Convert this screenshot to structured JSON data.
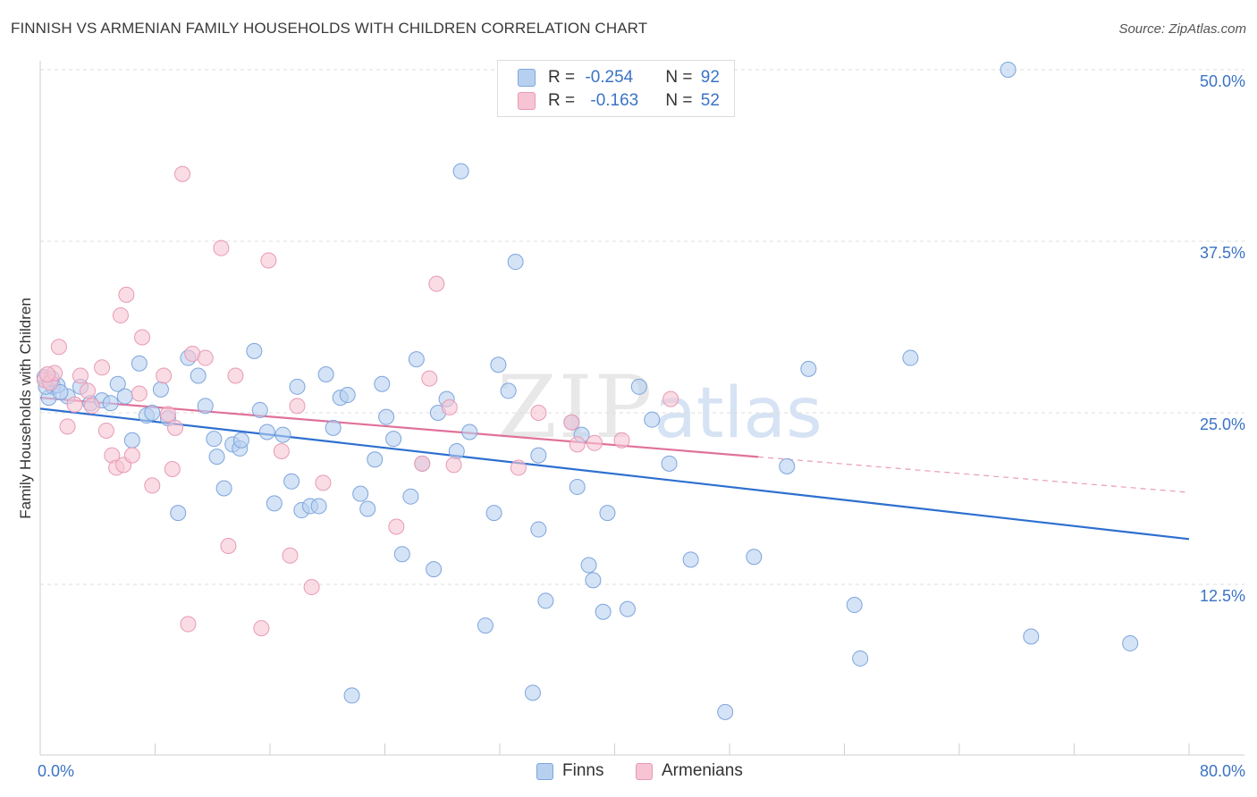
{
  "title": "FINNISH VS ARMENIAN FAMILY HOUSEHOLDS WITH CHILDREN CORRELATION CHART",
  "source": "Source: ZipAtlas.com",
  "watermark": {
    "part1": "ZIP",
    "part2": "atlas"
  },
  "colors": {
    "finns_fill": "#b8d0f0",
    "finns_stroke": "#7da5dd",
    "finns_line": "#2d6fd0",
    "armenians_fill": "#f6c4d3",
    "armenians_stroke": "#e89ab4",
    "armenians_line": "#e0719a",
    "axis_label": "#3a73c6",
    "grid": "#dddddd"
  },
  "stats": {
    "finns": {
      "r_label": "R = ",
      "r_value": "-0.254",
      "n_label": "N = ",
      "n_value": "92"
    },
    "armenians": {
      "r_label": "R = ",
      "r_value": "-0.163",
      "n_label": "N = ",
      "n_value": "52"
    }
  },
  "legend": {
    "finns": "Finns",
    "armenians": "Armenians"
  },
  "chart_data": {
    "type": "scatter",
    "title": "FINNISH VS ARMENIAN FAMILY HOUSEHOLDS WITH CHILDREN CORRELATION CHART",
    "xlabel": "",
    "ylabel": "Family Households with Children",
    "xlim": [
      0,
      80
    ],
    "ylim": [
      0,
      52
    ],
    "x_tick_labels": {
      "left": "0.0%",
      "right": "80.0%"
    },
    "y_ticks": [
      {
        "value": 12.5,
        "label": "12.5%"
      },
      {
        "value": 25.0,
        "label": "25.0%"
      },
      {
        "value": 37.5,
        "label": "37.5%"
      },
      {
        "value": 50.0,
        "label": "50.0%"
      }
    ],
    "series": [
      {
        "name": "Finns",
        "trend": {
          "x0": 0,
          "y0": 25.3,
          "x1": 80,
          "y1": 15.8,
          "dashed_from": null
        },
        "points": [
          [
            0.3,
            27.6
          ],
          [
            0.6,
            26.1
          ],
          [
            0.9,
            26.9
          ],
          [
            1.2,
            27.0
          ],
          [
            1.9,
            26.2
          ],
          [
            2.8,
            26.9
          ],
          [
            3.5,
            25.7
          ],
          [
            4.3,
            25.9
          ],
          [
            4.9,
            25.7
          ],
          [
            5.4,
            27.1
          ],
          [
            5.9,
            26.2
          ],
          [
            6.4,
            23.0
          ],
          [
            6.9,
            28.6
          ],
          [
            7.4,
            24.8
          ],
          [
            7.8,
            25.0
          ],
          [
            8.4,
            26.7
          ],
          [
            8.9,
            24.6
          ],
          [
            9.6,
            17.7
          ],
          [
            10.3,
            29.0
          ],
          [
            11.0,
            27.7
          ],
          [
            11.5,
            25.5
          ],
          [
            12.1,
            23.1
          ],
          [
            12.3,
            21.8
          ],
          [
            12.8,
            19.5
          ],
          [
            13.4,
            22.7
          ],
          [
            13.9,
            22.4
          ],
          [
            14.0,
            23.0
          ],
          [
            14.9,
            29.5
          ],
          [
            15.3,
            25.2
          ],
          [
            15.8,
            23.6
          ],
          [
            16.3,
            18.4
          ],
          [
            16.9,
            23.4
          ],
          [
            17.5,
            20.0
          ],
          [
            17.9,
            26.9
          ],
          [
            18.2,
            17.9
          ],
          [
            18.8,
            18.2
          ],
          [
            19.4,
            18.2
          ],
          [
            19.9,
            27.8
          ],
          [
            20.4,
            23.9
          ],
          [
            20.9,
            26.1
          ],
          [
            21.4,
            26.3
          ],
          [
            22.3,
            19.1
          ],
          [
            22.8,
            18.0
          ],
          [
            23.3,
            21.6
          ],
          [
            23.8,
            27.1
          ],
          [
            24.1,
            24.7
          ],
          [
            24.6,
            23.1
          ],
          [
            25.2,
            14.7
          ],
          [
            25.8,
            18.9
          ],
          [
            26.2,
            28.9
          ],
          [
            26.6,
            21.3
          ],
          [
            27.4,
            13.6
          ],
          [
            27.7,
            25.0
          ],
          [
            28.3,
            26.0
          ],
          [
            29.0,
            22.2
          ],
          [
            29.9,
            23.6
          ],
          [
            31.0,
            9.5
          ],
          [
            31.6,
            17.7
          ],
          [
            31.9,
            28.5
          ],
          [
            32.6,
            26.6
          ],
          [
            33.1,
            36.0
          ],
          [
            34.7,
            21.9
          ],
          [
            34.7,
            16.5
          ],
          [
            35.2,
            11.3
          ],
          [
            37.0,
            24.3
          ],
          [
            37.4,
            19.6
          ],
          [
            37.7,
            23.4
          ],
          [
            38.2,
            13.9
          ],
          [
            38.5,
            12.8
          ],
          [
            39.2,
            10.5
          ],
          [
            39.5,
            17.7
          ],
          [
            40.9,
            10.7
          ],
          [
            41.7,
            26.9
          ],
          [
            42.6,
            24.5
          ],
          [
            43.8,
            21.3
          ],
          [
            45.3,
            14.3
          ],
          [
            47.7,
            3.2
          ],
          [
            49.7,
            14.5
          ],
          [
            52.0,
            21.1
          ],
          [
            53.5,
            28.2
          ],
          [
            56.7,
            11.0
          ],
          [
            57.1,
            7.1
          ],
          [
            60.6,
            29.0
          ],
          [
            21.7,
            4.4
          ],
          [
            34.3,
            4.6
          ],
          [
            69.0,
            8.7
          ],
          [
            75.9,
            8.2
          ],
          [
            67.4,
            50.0
          ],
          [
            29.3,
            42.6
          ],
          [
            0.4,
            26.9
          ],
          [
            0.8,
            27.5
          ],
          [
            1.4,
            26.5
          ]
        ]
      },
      {
        "name": "Armenians",
        "trend": {
          "x0": 0,
          "y0": 26.1,
          "x1": 80,
          "y1": 19.2,
          "dashed_from": 50
        },
        "points": [
          [
            0.3,
            27.4
          ],
          [
            0.7,
            27.2
          ],
          [
            1.0,
            27.9
          ],
          [
            1.3,
            29.8
          ],
          [
            1.9,
            24.0
          ],
          [
            2.4,
            25.6
          ],
          [
            2.8,
            27.7
          ],
          [
            3.3,
            26.6
          ],
          [
            3.6,
            25.5
          ],
          [
            4.3,
            28.3
          ],
          [
            4.6,
            23.7
          ],
          [
            5.0,
            21.9
          ],
          [
            5.3,
            21.0
          ],
          [
            5.6,
            32.1
          ],
          [
            5.8,
            21.2
          ],
          [
            6.0,
            33.6
          ],
          [
            6.4,
            21.9
          ],
          [
            6.9,
            26.4
          ],
          [
            7.1,
            30.5
          ],
          [
            7.8,
            19.7
          ],
          [
            8.6,
            27.7
          ],
          [
            8.9,
            24.9
          ],
          [
            9.2,
            20.9
          ],
          [
            9.4,
            23.9
          ],
          [
            9.9,
            42.4
          ],
          [
            10.3,
            9.6
          ],
          [
            10.6,
            29.3
          ],
          [
            11.5,
            29.0
          ],
          [
            12.6,
            37.0
          ],
          [
            13.1,
            15.3
          ],
          [
            13.6,
            27.7
          ],
          [
            15.4,
            9.3
          ],
          [
            15.9,
            36.1
          ],
          [
            16.8,
            22.2
          ],
          [
            17.4,
            14.6
          ],
          [
            17.9,
            25.5
          ],
          [
            18.9,
            12.3
          ],
          [
            19.7,
            19.9
          ],
          [
            24.8,
            16.7
          ],
          [
            26.6,
            21.3
          ],
          [
            27.1,
            27.5
          ],
          [
            27.6,
            34.4
          ],
          [
            28.5,
            25.4
          ],
          [
            28.8,
            21.2
          ],
          [
            33.3,
            21.0
          ],
          [
            34.7,
            25.0
          ],
          [
            37.0,
            24.3
          ],
          [
            37.4,
            22.7
          ],
          [
            38.6,
            22.8
          ],
          [
            40.5,
            23.0
          ],
          [
            43.9,
            26.0
          ],
          [
            0.5,
            27.8
          ]
        ]
      }
    ]
  }
}
